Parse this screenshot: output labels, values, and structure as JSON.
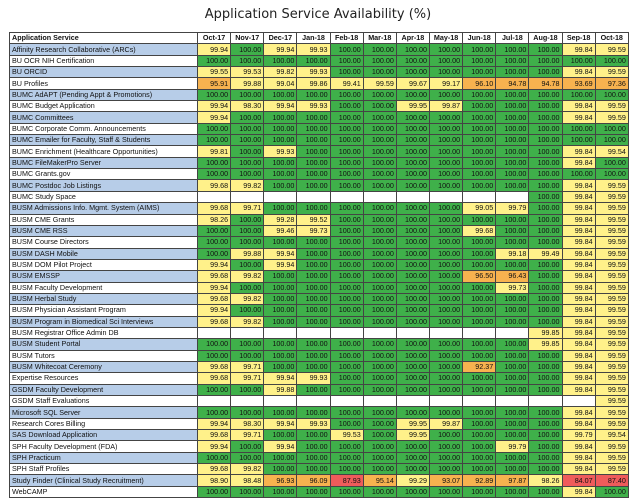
{
  "chart_data": {
    "type": "table",
    "title": "Application Service Availability (%)",
    "header_label": "Application Service",
    "columns": [
      "Oct-17",
      "Nov-17",
      "Dec-17",
      "Jan-18",
      "Feb-18",
      "Mar-18",
      "Apr-18",
      "May-18",
      "Jun-18",
      "Jul-18",
      "Aug-18",
      "Sep-18",
      "Oct-18"
    ],
    "rows": [
      {
        "name": "Affinity Research Collaborative (ARCs)",
        "values": [
          "99.94",
          "100.00",
          "99.94",
          "99.93",
          "100.00",
          "100.00",
          "100.00",
          "100.00",
          "100.00",
          "100.00",
          "100.00",
          "99.84",
          "99.59"
        ]
      },
      {
        "name": "BU OCR NIH Certification",
        "values": [
          "100.00",
          "100.00",
          "100.00",
          "100.00",
          "100.00",
          "100.00",
          "100.00",
          "100.00",
          "100.00",
          "100.00",
          "100.00",
          "100.00",
          "100.00"
        ]
      },
      {
        "name": "BU ORCID",
        "values": [
          "99.55",
          "99.53",
          "99.82",
          "99.93",
          "100.00",
          "100.00",
          "100.00",
          "100.00",
          "100.00",
          "100.00",
          "100.00",
          "99.84",
          "99.59"
        ]
      },
      {
        "name": "BU Profiles",
        "values": [
          "95.91",
          "99.88",
          "99.04",
          "99.86",
          "99.41",
          "99.59",
          "99.67",
          "99.17",
          "96.10",
          "94.78",
          "94.78",
          "93.69",
          "97.36"
        ]
      },
      {
        "name": "BUMC AdAPT (Pending Appt & Promotions)",
        "values": [
          "100.00",
          "100.00",
          "100.00",
          "100.00",
          "100.00",
          "100.00",
          "100.00",
          "100.00",
          "100.00",
          "100.00",
          "100.00",
          "100.00",
          "100.00"
        ]
      },
      {
        "name": "BUMC Budget Application",
        "values": [
          "99.94",
          "98.30",
          "99.94",
          "99.93",
          "100.00",
          "100.00",
          "99.95",
          "99.87",
          "100.00",
          "100.00",
          "100.00",
          "99.84",
          "99.59"
        ]
      },
      {
        "name": "BUMC Committees",
        "values": [
          "99.94",
          "100.00",
          "100.00",
          "100.00",
          "100.00",
          "100.00",
          "100.00",
          "100.00",
          "100.00",
          "100.00",
          "100.00",
          "99.84",
          "99.59"
        ]
      },
      {
        "name": "BUMC Corporate Comm. Announcements",
        "values": [
          "100.00",
          "100.00",
          "100.00",
          "100.00",
          "100.00",
          "100.00",
          "100.00",
          "100.00",
          "100.00",
          "100.00",
          "100.00",
          "100.00",
          "100.00"
        ]
      },
      {
        "name": "BUMC Emailer for Faculty, Staff & Students",
        "values": [
          "100.00",
          "100.00",
          "100.00",
          "100.00",
          "100.00",
          "100.00",
          "100.00",
          "100.00",
          "100.00",
          "100.00",
          "100.00",
          "100.00",
          "100.00"
        ]
      },
      {
        "name": "BUMC Enrichment (Healthcare Opportunities)",
        "values": [
          "99.81",
          "100.00",
          "99.93",
          "100.00",
          "100.00",
          "100.00",
          "100.00",
          "100.00",
          "100.00",
          "100.00",
          "100.00",
          "99.84",
          "99.54"
        ]
      },
      {
        "name": "BUMC FileMakerPro Server",
        "values": [
          "100.00",
          "100.00",
          "100.00",
          "100.00",
          "100.00",
          "100.00",
          "100.00",
          "100.00",
          "100.00",
          "100.00",
          "100.00",
          "99.84",
          "100.00"
        ]
      },
      {
        "name": "BUMC Grants.gov",
        "values": [
          "100.00",
          "100.00",
          "100.00",
          "100.00",
          "100.00",
          "100.00",
          "100.00",
          "100.00",
          "100.00",
          "100.00",
          "100.00",
          "100.00",
          "100.00"
        ]
      },
      {
        "name": "BUMC Postdoc Job Listings",
        "values": [
          "99.68",
          "99.82",
          "100.00",
          "100.00",
          "100.00",
          "100.00",
          "100.00",
          "100.00",
          "100.00",
          "100.00",
          "100.00",
          "99.84",
          "99.59"
        ]
      },
      {
        "name": "BUMC Study Space",
        "values": [
          "",
          "",
          "",
          "",
          "",
          "",
          "",
          "",
          "",
          "",
          "100.00",
          "99.84",
          "99.59"
        ]
      },
      {
        "name": "BUSM Admissions Info. Mgmt. System (AIMS)",
        "values": [
          "99.68",
          "99.71",
          "100.00",
          "100.00",
          "100.00",
          "100.00",
          "100.00",
          "100.00",
          "99.05",
          "99.79",
          "100.00",
          "99.84",
          "99.59"
        ]
      },
      {
        "name": "BUSM CME Grants",
        "values": [
          "98.26",
          "100.00",
          "99.28",
          "99.52",
          "100.00",
          "100.00",
          "100.00",
          "100.00",
          "100.00",
          "100.00",
          "100.00",
          "99.84",
          "99.59"
        ]
      },
      {
        "name": "BUSM CME RSS",
        "values": [
          "100.00",
          "100.00",
          "99.46",
          "99.73",
          "100.00",
          "100.00",
          "100.00",
          "100.00",
          "99.68",
          "100.00",
          "100.00",
          "99.84",
          "99.59"
        ]
      },
      {
        "name": "BUSM Course Directors",
        "values": [
          "100.00",
          "100.00",
          "100.00",
          "100.00",
          "100.00",
          "100.00",
          "100.00",
          "100.00",
          "100.00",
          "100.00",
          "100.00",
          "99.84",
          "99.59"
        ]
      },
      {
        "name": "BUSM DASH Mobile",
        "values": [
          "100.00",
          "99.88",
          "99.94",
          "100.00",
          "100.00",
          "100.00",
          "100.00",
          "100.00",
          "100.00",
          "99.18",
          "99.49",
          "99.84",
          "99.59"
        ]
      },
      {
        "name": "BUSM DOM Pilot Project",
        "values": [
          "99.94",
          "100.00",
          "99.94",
          "100.00",
          "100.00",
          "100.00",
          "100.00",
          "100.00",
          "100.00",
          "100.00",
          "100.00",
          "99.84",
          "99.59"
        ]
      },
      {
        "name": "BUSM EMSSP",
        "values": [
          "99.68",
          "99.82",
          "100.00",
          "100.00",
          "100.00",
          "100.00",
          "100.00",
          "100.00",
          "96.50",
          "96.43",
          "100.00",
          "99.84",
          "99.59"
        ]
      },
      {
        "name": "BUSM Faculty Development",
        "values": [
          "99.94",
          "100.00",
          "100.00",
          "100.00",
          "100.00",
          "100.00",
          "100.00",
          "100.00",
          "100.00",
          "99.73",
          "100.00",
          "99.84",
          "99.59"
        ]
      },
      {
        "name": "BUSM Herbal Study",
        "values": [
          "99.68",
          "99.82",
          "100.00",
          "100.00",
          "100.00",
          "100.00",
          "100.00",
          "100.00",
          "100.00",
          "100.00",
          "100.00",
          "99.84",
          "99.59"
        ]
      },
      {
        "name": "BUSM Physician Assistant Program",
        "values": [
          "99.94",
          "100.00",
          "100.00",
          "100.00",
          "100.00",
          "100.00",
          "100.00",
          "100.00",
          "100.00",
          "100.00",
          "100.00",
          "99.84",
          "99.59"
        ]
      },
      {
        "name": "BUSM Program in Biomedical Sci Interviews",
        "values": [
          "99.68",
          "99.82",
          "100.00",
          "100.00",
          "100.00",
          "100.00",
          "100.00",
          "100.00",
          "100.00",
          "100.00",
          "100.00",
          "99.84",
          "99.59"
        ]
      },
      {
        "name": "BUSM Registrar Office Admin DB",
        "values": [
          "",
          "",
          "",
          "",
          "",
          "",
          "",
          "",
          "",
          "",
          "99.85",
          "99.84",
          "99.59"
        ]
      },
      {
        "name": "BUSM Student Portal",
        "values": [
          "100.00",
          "100.00",
          "100.00",
          "100.00",
          "100.00",
          "100.00",
          "100.00",
          "100.00",
          "100.00",
          "100.00",
          "99.85",
          "99.84",
          "99.59"
        ]
      },
      {
        "name": "BUSM Tutors",
        "values": [
          "100.00",
          "100.00",
          "100.00",
          "100.00",
          "100.00",
          "100.00",
          "100.00",
          "100.00",
          "100.00",
          "100.00",
          "100.00",
          "99.84",
          "99.59"
        ]
      },
      {
        "name": "BUSM Whitecoat Ceremony",
        "values": [
          "99.68",
          "99.71",
          "100.00",
          "100.00",
          "100.00",
          "100.00",
          "100.00",
          "100.00",
          "92.37",
          "100.00",
          "100.00",
          "99.84",
          "99.59"
        ]
      },
      {
        "name": "Expertise Resources",
        "values": [
          "99.68",
          "99.71",
          "99.94",
          "99.93",
          "100.00",
          "100.00",
          "100.00",
          "100.00",
          "100.00",
          "100.00",
          "100.00",
          "99.84",
          "99.59"
        ]
      },
      {
        "name": "GSDM Faculty Development",
        "values": [
          "100.00",
          "100.00",
          "99.88",
          "100.00",
          "100.00",
          "100.00",
          "100.00",
          "100.00",
          "100.00",
          "100.00",
          "100.00",
          "99.84",
          "99.59"
        ]
      },
      {
        "name": "GSDM Staff Evaluations",
        "values": [
          "",
          "",
          "",
          "",
          "",
          "",
          "",
          "",
          "",
          "",
          "",
          "",
          "99.59"
        ]
      },
      {
        "name": "Microsoft SQL Server",
        "values": [
          "100.00",
          "100.00",
          "100.00",
          "100.00",
          "100.00",
          "100.00",
          "100.00",
          "100.00",
          "100.00",
          "100.00",
          "100.00",
          "99.84",
          "99.59"
        ]
      },
      {
        "name": "Research Cores Billing",
        "values": [
          "99.94",
          "98.30",
          "99.94",
          "99.93",
          "100.00",
          "100.00",
          "99.95",
          "99.87",
          "100.00",
          "100.00",
          "100.00",
          "99.84",
          "99.59"
        ]
      },
      {
        "name": "SAS Download Application",
        "values": [
          "99.68",
          "99.71",
          "100.00",
          "100.00",
          "99.53",
          "100.00",
          "99.95",
          "100.00",
          "100.00",
          "100.00",
          "100.00",
          "99.79",
          "99.54"
        ]
      },
      {
        "name": "SPH Faculty Development (FDA)",
        "values": [
          "99.94",
          "100.00",
          "99.94",
          "100.00",
          "100.00",
          "100.00",
          "100.00",
          "100.00",
          "100.00",
          "99.79",
          "100.00",
          "99.84",
          "99.59"
        ]
      },
      {
        "name": "SPH Practicum",
        "values": [
          "100.00",
          "100.00",
          "100.00",
          "100.00",
          "100.00",
          "100.00",
          "100.00",
          "100.00",
          "100.00",
          "100.00",
          "100.00",
          "99.84",
          "99.59"
        ]
      },
      {
        "name": "SPH Staff Profiles",
        "values": [
          "99.68",
          "99.82",
          "100.00",
          "100.00",
          "100.00",
          "100.00",
          "100.00",
          "100.00",
          "100.00",
          "100.00",
          "100.00",
          "99.84",
          "99.59"
        ]
      },
      {
        "name": "Study Finder (Clinical Study Recruitment)",
        "values": [
          "98.90",
          "98.48",
          "96.93",
          "96.09",
          "87.93",
          "95.14",
          "99.29",
          "93.07",
          "92.89",
          "97.87",
          "98.26",
          "84.07",
          "87.40"
        ]
      },
      {
        "name": "WebCAMP",
        "values": [
          "100.00",
          "100.00",
          "100.00",
          "100.00",
          "100.00",
          "100.00",
          "100.00",
          "100.00",
          "100.00",
          "100.00",
          "100.00",
          "99.84",
          "100.00"
        ]
      }
    ],
    "color_scale": {
      "green": "#3fb04a",
      "yellow": "#fff18a",
      "orange": "#f7b24f",
      "red": "#ef5b5b",
      "band": "#b7cde8"
    }
  }
}
